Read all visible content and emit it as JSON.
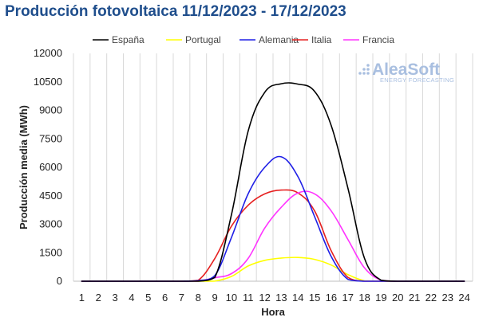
{
  "title": "Producción fotovoltaica 11/12/2023 - 17/12/2023",
  "logo": {
    "main": "AleaSoft",
    "sub": "ENERGY FORECASTING"
  },
  "chart_data": {
    "type": "line",
    "title": "Producción fotovoltaica 11/12/2023 - 17/12/2023",
    "xlabel": "Hora",
    "ylabel": "Producción media (MWh)",
    "ylim": [
      0,
      12000
    ],
    "yticks": [
      0,
      1500,
      3000,
      4500,
      6000,
      7500,
      9000,
      10500,
      12000
    ],
    "categories": [
      "1",
      "2",
      "3",
      "4",
      "5",
      "6",
      "7",
      "8",
      "9",
      "10",
      "11",
      "12",
      "13",
      "14",
      "15",
      "16",
      "17",
      "18",
      "19",
      "20",
      "21",
      "22",
      "23",
      "24"
    ],
    "grid": "vertical",
    "legend_position": "top",
    "series": [
      {
        "name": "España",
        "color": "#000000",
        "values": [
          0,
          0,
          0,
          0,
          0,
          0,
          0,
          0,
          200,
          3500,
          7900,
          9950,
          10400,
          10380,
          10000,
          8200,
          4900,
          1200,
          50,
          0,
          0,
          0,
          0,
          0
        ]
      },
      {
        "name": "Portugal",
        "color": "#ffff00",
        "values": [
          0,
          0,
          0,
          0,
          0,
          0,
          0,
          0,
          10,
          250,
          800,
          1100,
          1220,
          1250,
          1150,
          850,
          350,
          20,
          0,
          0,
          0,
          0,
          0,
          0
        ]
      },
      {
        "name": "Alemania",
        "color": "#1f1fe6",
        "values": [
          0,
          0,
          0,
          0,
          0,
          0,
          0,
          30,
          300,
          2300,
          4600,
          6000,
          6550,
          5500,
          3400,
          1300,
          100,
          0,
          0,
          0,
          0,
          0,
          0,
          0
        ]
      },
      {
        "name": "Italia",
        "color": "#e62020",
        "values": [
          0,
          0,
          0,
          0,
          0,
          0,
          0,
          50,
          1200,
          2900,
          4000,
          4600,
          4800,
          4650,
          3700,
          1600,
          200,
          0,
          0,
          0,
          0,
          0,
          0,
          0
        ]
      },
      {
        "name": "Francia",
        "color": "#ff33ff",
        "values": [
          0,
          0,
          0,
          0,
          0,
          0,
          0,
          10,
          180,
          400,
          1200,
          2800,
          3900,
          4650,
          4600,
          3700,
          2200,
          700,
          50,
          0,
          0,
          0,
          0,
          0
        ]
      }
    ]
  }
}
